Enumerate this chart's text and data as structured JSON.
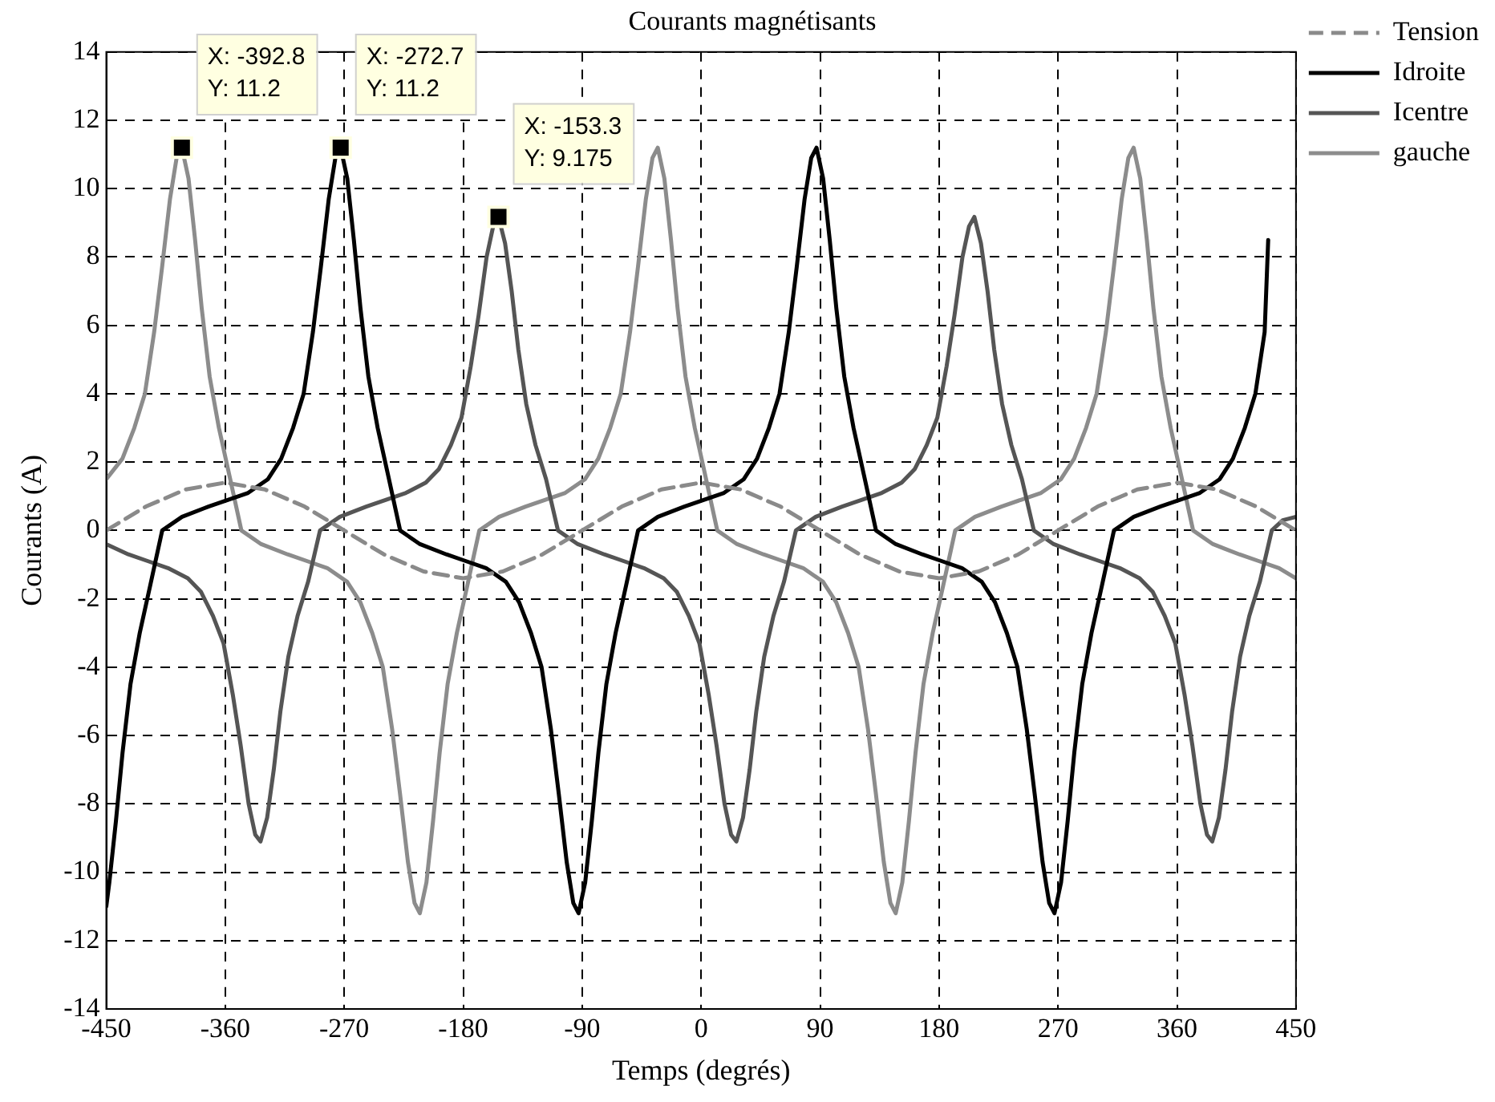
{
  "chart_data": {
    "type": "line",
    "title": "Courants magnétisants",
    "xlabel": "Temps (degrés)",
    "ylabel": "Courants (A)",
    "xlim": [
      -450,
      450
    ],
    "xticks": [
      -450,
      -360,
      -270,
      -180,
      -90,
      0,
      90,
      180,
      270,
      360,
      450
    ],
    "ylim": [
      -14,
      14
    ],
    "yticks": [
      -14,
      -12,
      -10,
      -8,
      -6,
      -4,
      -2,
      0,
      2,
      4,
      6,
      8,
      10,
      12,
      14
    ],
    "grid": true,
    "legend": "top right",
    "marker": "none",
    "line_style": "solid",
    "series": [
      {
        "name": "Tension",
        "color": "#8a8a8a",
        "line_style": "dashed",
        "x": [
          -450,
          -420,
          -390,
          -360,
          -330,
          -300,
          -270,
          -240,
          -210,
          -180,
          -150,
          -120,
          -90,
          -60,
          -30,
          0,
          30,
          60,
          90,
          120,
          150,
          180,
          210,
          240,
          270,
          300,
          330,
          360,
          390,
          420,
          450
        ],
        "values": [
          0,
          0.7,
          1.2,
          1.4,
          1.2,
          0.7,
          0,
          -0.7,
          -1.2,
          -1.4,
          -1.2,
          -0.7,
          0,
          0.7,
          1.2,
          1.4,
          1.2,
          0.7,
          0,
          -0.7,
          -1.2,
          -1.4,
          -1.2,
          -0.7,
          0,
          0.7,
          1.2,
          1.4,
          1.2,
          0.7,
          0
        ]
      },
      {
        "name": "Idroite",
        "color": "#000000",
        "x": [
          -450,
          -447.7,
          -442.7,
          -437.7,
          -431.7,
          -424.7,
          -416.7,
          -407.7,
          -392.7,
          -372.7,
          -357.7,
          -342.7,
          -327.7,
          -317.7,
          -308.7,
          -300.7,
          -293.7,
          -287.7,
          -281.7,
          -276.7,
          -272.7,
          -267.7,
          -262.7,
          -257.7,
          -251.7,
          -244.7,
          -236.7,
          -227.7,
          -212.7,
          -192.7,
          -177.7,
          -162.7,
          -147.7,
          -137.7,
          -128.7,
          -120.7,
          -113.7,
          -107.7,
          -101.7,
          -96.7,
          -92.7,
          -87.7,
          -82.7,
          -77.7,
          -71.7,
          -64.7,
          -56.7,
          -47.7,
          -32.7,
          -12.7,
          2.3,
          17.3,
          32.3,
          42.3,
          51.3,
          59.3,
          66.3,
          72.3,
          78.3,
          83.3,
          87.3,
          92.3,
          97.3,
          102.3,
          108.3,
          115.3,
          123.3,
          132.3,
          147.3,
          167.3,
          182.3,
          197.3,
          212.3,
          222.3,
          231.3,
          239.3,
          246.3,
          252.3,
          258.3,
          263.3,
          267.3,
          272.3,
          277.3,
          282.3,
          288.3,
          295.3,
          303.3,
          312.3,
          327.3,
          347.3,
          362.3,
          377.3,
          392.3,
          402.3,
          411.3,
          419.3,
          426.3,
          429
        ],
        "values": [
          -11,
          -10.3,
          -8.5,
          -6.5,
          -4.5,
          -3,
          -1.6,
          0,
          0.4,
          0.7,
          0.9,
          1.1,
          1.5,
          2.1,
          3,
          4,
          5.8,
          7.7,
          9.7,
          10.9,
          11.2,
          10.3,
          8.5,
          6.5,
          4.5,
          3,
          1.6,
          0,
          -0.4,
          -0.7,
          -0.9,
          -1.1,
          -1.5,
          -2.1,
          -3,
          -4,
          -5.8,
          -7.7,
          -9.7,
          -10.9,
          -11.2,
          -10.3,
          -8.5,
          -6.5,
          -4.5,
          -3,
          -1.6,
          0,
          0.4,
          0.7,
          0.9,
          1.1,
          1.5,
          2.1,
          3,
          4,
          5.8,
          7.7,
          9.7,
          10.9,
          11.2,
          10.3,
          8.5,
          6.5,
          4.5,
          3,
          1.6,
          0,
          -0.4,
          -0.7,
          -0.9,
          -1.1,
          -1.5,
          -2.1,
          -3,
          -4,
          -5.8,
          -7.7,
          -9.7,
          -10.9,
          -11.2,
          -10.3,
          -8.5,
          -6.5,
          -4.5,
          -3,
          -1.6,
          0,
          0.4,
          0.7,
          0.9,
          1.1,
          1.5,
          2.1,
          3,
          4,
          5.8,
          8.5
        ]
      },
      {
        "name": "Icentre",
        "color": "#555555",
        "x": [
          -450,
          -433.3,
          -418.3,
          -403.3,
          -388.3,
          -378.3,
          -369.3,
          -361.3,
          -354.3,
          -348.3,
          -342.3,
          -337.3,
          -333.3,
          -328.3,
          -323.3,
          -318.3,
          -312.3,
          -305.3,
          -297.3,
          -288.3,
          -273.3,
          -253.3,
          -238.3,
          -223.3,
          -208.3,
          -198.3,
          -189.3,
          -181.3,
          -174.3,
          -168.3,
          -162.3,
          -157.3,
          -153.3,
          -148.3,
          -143.3,
          -138.3,
          -132.3,
          -125.3,
          -117.3,
          -108.3,
          -93.3,
          -73.3,
          -58.3,
          -43.3,
          -28.3,
          -18.3,
          -9.3,
          -1.3,
          5.7,
          11.7,
          17.7,
          22.7,
          26.7,
          31.7,
          36.7,
          41.7,
          47.7,
          54.7,
          62.7,
          71.7,
          86.7,
          106.7,
          121.7,
          136.7,
          151.7,
          161.7,
          170.7,
          178.7,
          185.7,
          191.7,
          197.7,
          202.7,
          206.7,
          211.7,
          216.7,
          221.7,
          227.7,
          234.7,
          242.7,
          251.7,
          266.7,
          286.7,
          301.7,
          316.7,
          331.7,
          341.7,
          350.7,
          358.7,
          365.7,
          371.7,
          377.7,
          382.7,
          386.7,
          391.7,
          396.7,
          401.7,
          407.7,
          414.7,
          422.7,
          431.7,
          440,
          450
        ],
        "values": [
          -0.4,
          -0.7,
          -0.9,
          -1.1,
          -1.4,
          -1.8,
          -2.5,
          -3.3,
          -4.8,
          -6.3,
          -8,
          -8.9,
          -9.1,
          -8.4,
          -7,
          -5.3,
          -3.7,
          -2.5,
          -1.5,
          0,
          0.4,
          0.7,
          0.9,
          1.1,
          1.4,
          1.8,
          2.5,
          3.3,
          4.8,
          6.3,
          8,
          8.9,
          9.175,
          8.4,
          7,
          5.3,
          3.7,
          2.5,
          1.5,
          0,
          -0.4,
          -0.7,
          -0.9,
          -1.1,
          -1.4,
          -1.8,
          -2.5,
          -3.3,
          -4.8,
          -6.3,
          -8,
          -8.9,
          -9.1,
          -8.4,
          -7,
          -5.3,
          -3.7,
          -2.5,
          -1.5,
          0,
          0.4,
          0.7,
          0.9,
          1.1,
          1.4,
          1.8,
          2.5,
          3.3,
          4.8,
          6.3,
          8,
          8.9,
          9.175,
          8.4,
          7,
          5.3,
          3.7,
          2.5,
          1.5,
          0,
          -0.4,
          -0.7,
          -0.9,
          -1.1,
          -1.4,
          -1.8,
          -2.5,
          -3.3,
          -4.8,
          -6.3,
          -8,
          -8.9,
          -9.1,
          -8.4,
          -7,
          -5.3,
          -3.7,
          -2.5,
          -1.5,
          0,
          0.3,
          0.4
        ]
      },
      {
        "name": "gauche",
        "color": "#8c8c8c",
        "x": [
          -450,
          -437.8,
          -428.8,
          -420.8,
          -413.8,
          -407.8,
          -401.8,
          -396.8,
          -392.8,
          -387.8,
          -382.8,
          -377.8,
          -371.8,
          -364.8,
          -356.8,
          -347.8,
          -332.8,
          -312.8,
          -297.8,
          -282.8,
          -267.8,
          -257.8,
          -248.8,
          -240.8,
          -233.8,
          -227.8,
          -221.8,
          -216.8,
          -212.8,
          -207.8,
          -202.8,
          -197.8,
          -191.8,
          -184.8,
          -176.8,
          -167.8,
          -152.8,
          -132.8,
          -117.8,
          -102.8,
          -87.8,
          -77.8,
          -68.8,
          -60.8,
          -53.8,
          -47.8,
          -41.8,
          -36.8,
          -32.8,
          -27.8,
          -22.8,
          -17.8,
          -11.8,
          -4.8,
          3.2,
          12.2,
          27.2,
          47.2,
          62.2,
          77.2,
          92.2,
          102.2,
          111.2,
          119.2,
          126.2,
          132.2,
          138.2,
          143.2,
          147.2,
          152.2,
          157.2,
          162.2,
          168.2,
          175.2,
          183.2,
          192.2,
          207.2,
          227.2,
          242.2,
          257.2,
          272.2,
          282.2,
          291.2,
          299.2,
          306.2,
          312.2,
          318.2,
          323.2,
          327.2,
          332.2,
          337.2,
          342.2,
          348.2,
          355.2,
          363.2,
          372.2,
          387.2,
          407.2,
          422.2,
          437.2,
          450
        ],
        "values": [
          1.5,
          2.1,
          3,
          4,
          5.8,
          7.7,
          9.7,
          10.9,
          11.2,
          10.3,
          8.5,
          6.5,
          4.5,
          3,
          1.6,
          0,
          -0.4,
          -0.7,
          -0.9,
          -1.1,
          -1.5,
          -2.1,
          -3,
          -4,
          -5.8,
          -7.7,
          -9.7,
          -10.9,
          -11.2,
          -10.3,
          -8.5,
          -6.5,
          -4.5,
          -3,
          -1.6,
          0,
          0.4,
          0.7,
          0.9,
          1.1,
          1.5,
          2.1,
          3,
          4,
          5.8,
          7.7,
          9.7,
          10.9,
          11.2,
          10.3,
          8.5,
          6.5,
          4.5,
          3,
          1.6,
          0,
          -0.4,
          -0.7,
          -0.9,
          -1.1,
          -1.5,
          -2.1,
          -3,
          -4,
          -5.8,
          -7.7,
          -9.7,
          -10.9,
          -11.2,
          -10.3,
          -8.5,
          -6.5,
          -4.5,
          -3,
          -1.6,
          0,
          0.4,
          0.7,
          0.9,
          1.1,
          1.5,
          2.1,
          3,
          4,
          5.8,
          7.7,
          9.7,
          10.9,
          11.2,
          10.3,
          8.5,
          6.5,
          4.5,
          3,
          1.6,
          0,
          -0.4,
          -0.7,
          -0.9,
          -1.1,
          -1.4
        ]
      }
    ],
    "annotations": [
      {
        "text": "X: -392.8\nY: 11.2",
        "x": -392.8,
        "y": 11.2
      },
      {
        "text": "X: -272.7\nY: 11.2",
        "x": -272.7,
        "y": 11.2
      },
      {
        "text": "X: -153.3\nY: 9.175",
        "x": -153.3,
        "y": 9.175
      }
    ]
  }
}
